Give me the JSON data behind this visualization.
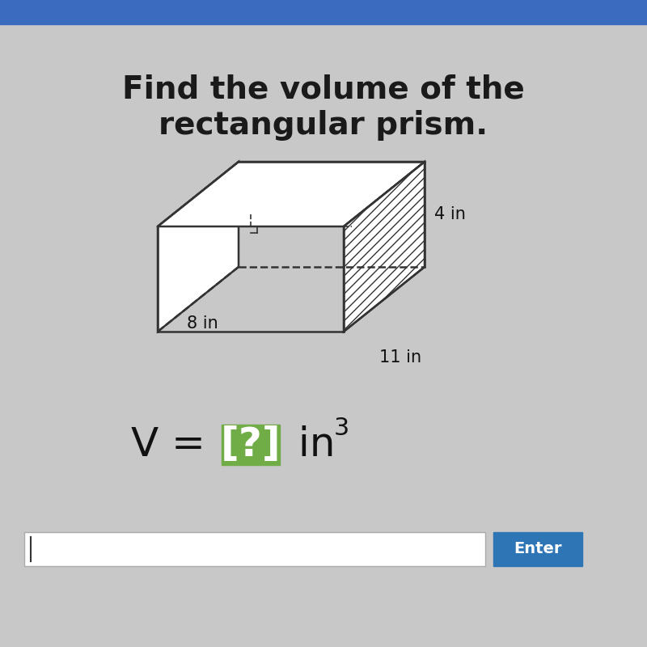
{
  "title_line1": "Find the volume of the",
  "title_line2": "rectangular prism.",
  "dim_width": "11 in",
  "dim_height": "4 in",
  "dim_depth": "8 in",
  "background_color": "#c8c8c8",
  "header_color": "#3a6bbf",
  "title_fontsize": 28,
  "formula_fontsize": 36,
  "dim_fontsize": 15,
  "enter_button_color": "#2e75b6",
  "enter_text_color": "#ffffff",
  "box_highlight_color": "#70ad47",
  "line_color": "#333333"
}
